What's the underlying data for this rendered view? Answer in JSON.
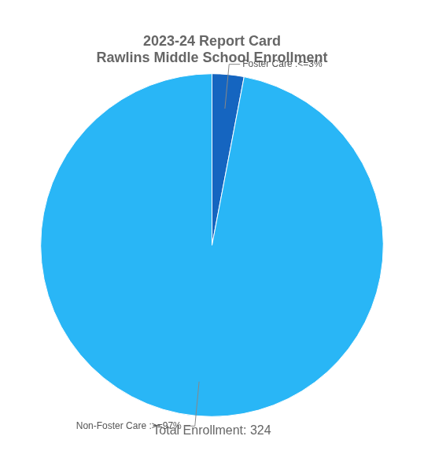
{
  "chart_data": {
    "type": "pie",
    "title": [
      "2023-24 Report Card",
      "Rawlins Middle School Enrollment"
    ],
    "categories": [
      "Foster Care :<=3%",
      "Non-Foster Care :>=97%"
    ],
    "values": [
      3,
      97
    ],
    "colors": [
      "#1565C0",
      "#29B6F6"
    ],
    "annotations": [
      "Total Enrollment: 324"
    ]
  }
}
